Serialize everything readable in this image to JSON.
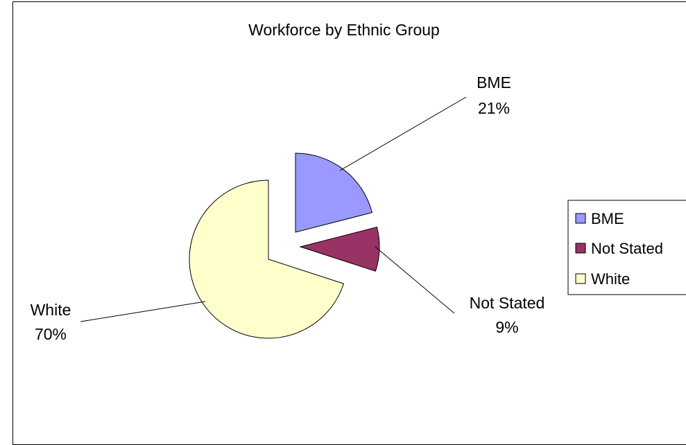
{
  "chart_data": {
    "type": "pie",
    "title": "Workforce by Ethnic Group",
    "categories": [
      "BME",
      "Not Stated",
      "White"
    ],
    "values": [
      21,
      9,
      70
    ],
    "data_labels": [
      {
        "name": "BME",
        "value": "21%"
      },
      {
        "name": "Not Stated",
        "value": "9%"
      },
      {
        "name": "White",
        "value": "70%"
      }
    ],
    "colors": [
      "#9999ff",
      "#993366",
      "#ffffcc"
    ],
    "exploded": true,
    "legend": {
      "position": "right",
      "items": [
        "BME",
        "Not Stated",
        "White"
      ]
    }
  }
}
